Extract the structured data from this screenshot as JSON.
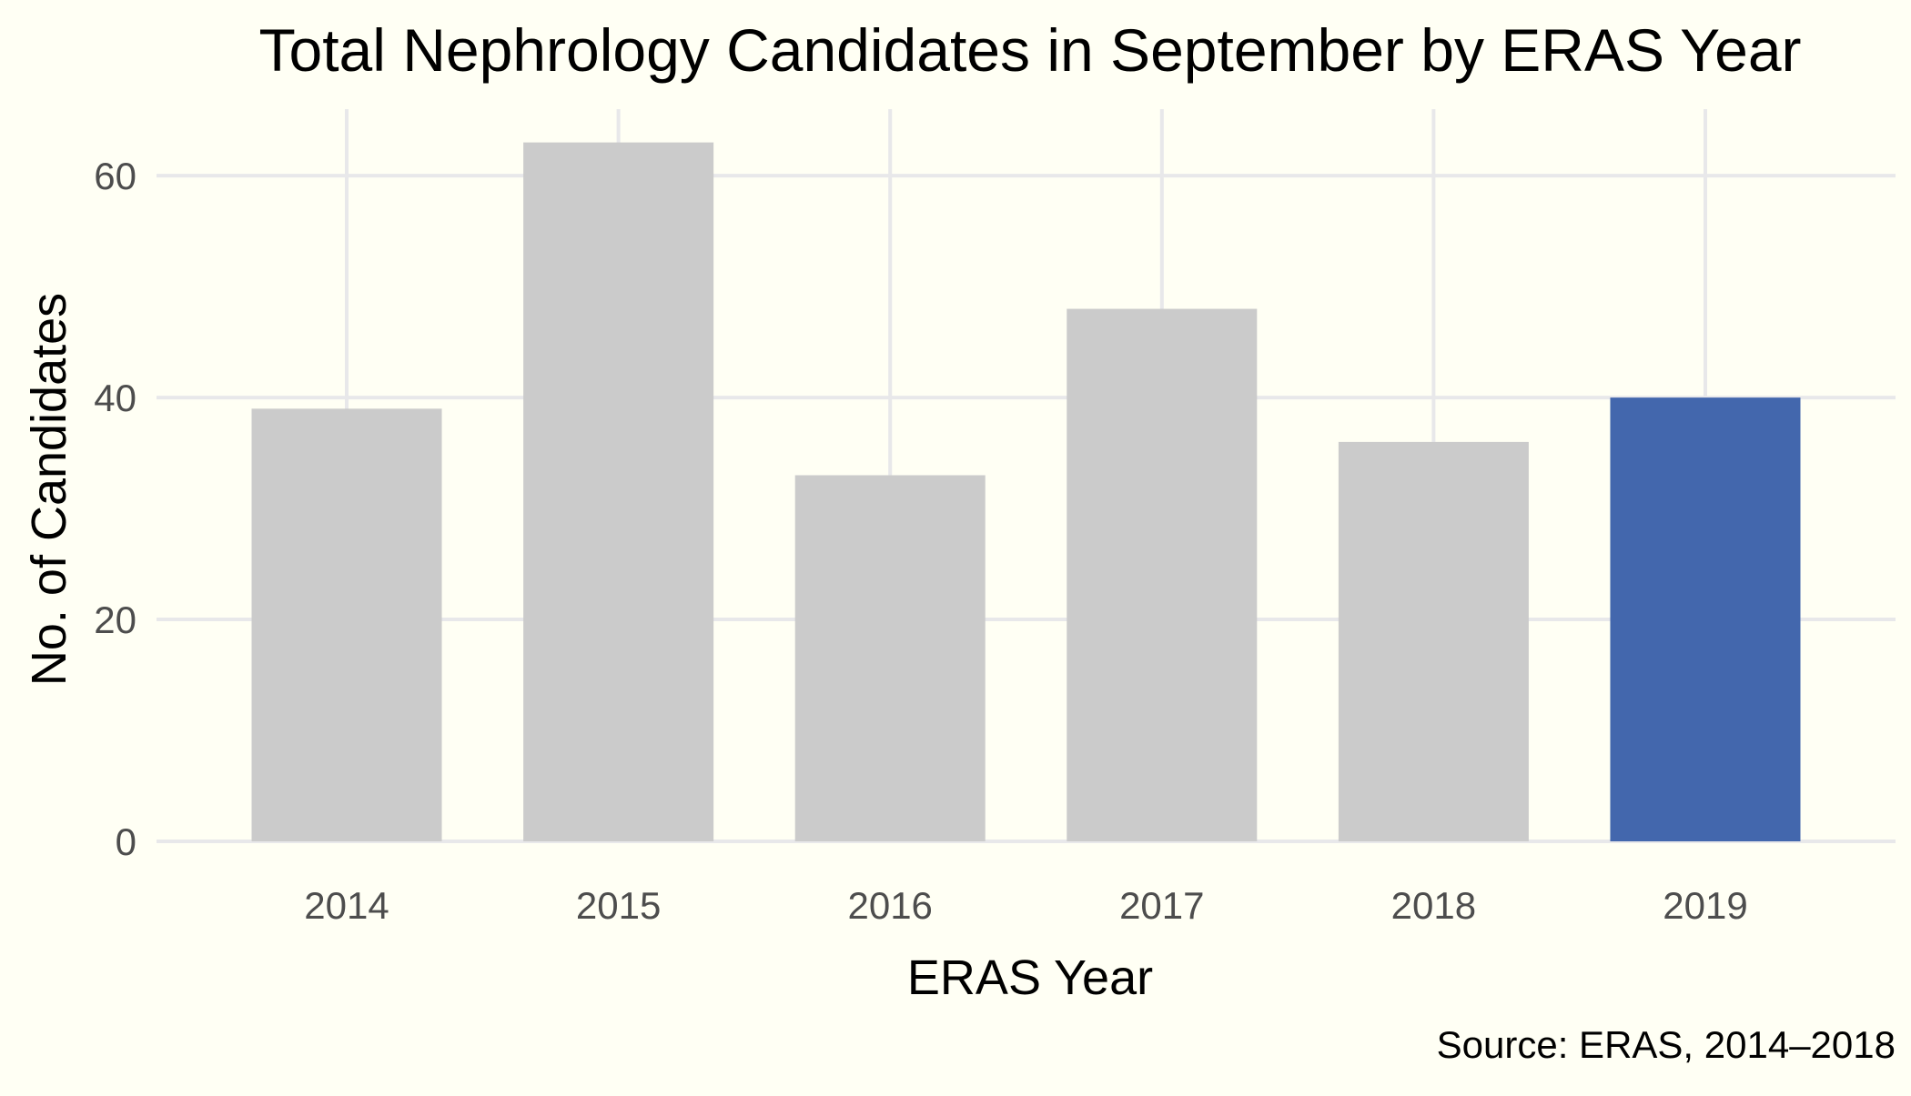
{
  "chart_data": {
    "type": "bar",
    "title": "Total Nephrology Candidates in September by ERAS Year",
    "xlabel": "ERAS Year",
    "ylabel": "No. of Candidates",
    "caption": "Source: ERAS, 2014–2018",
    "categories": [
      "2014",
      "2015",
      "2016",
      "2017",
      "2018",
      "2019"
    ],
    "values": [
      39,
      63,
      33,
      48,
      36,
      40
    ],
    "ylim": [
      0,
      66
    ],
    "yticks": [
      0,
      20,
      40,
      60
    ],
    "grid": true,
    "highlight_category": "2019",
    "colors": {
      "background": "#fffff4",
      "bar": "#cbcbcb",
      "highlight": "#4367ad",
      "grid": "#e8e8ea",
      "tick_text": "#4d4d4d",
      "text": "#000000"
    }
  }
}
